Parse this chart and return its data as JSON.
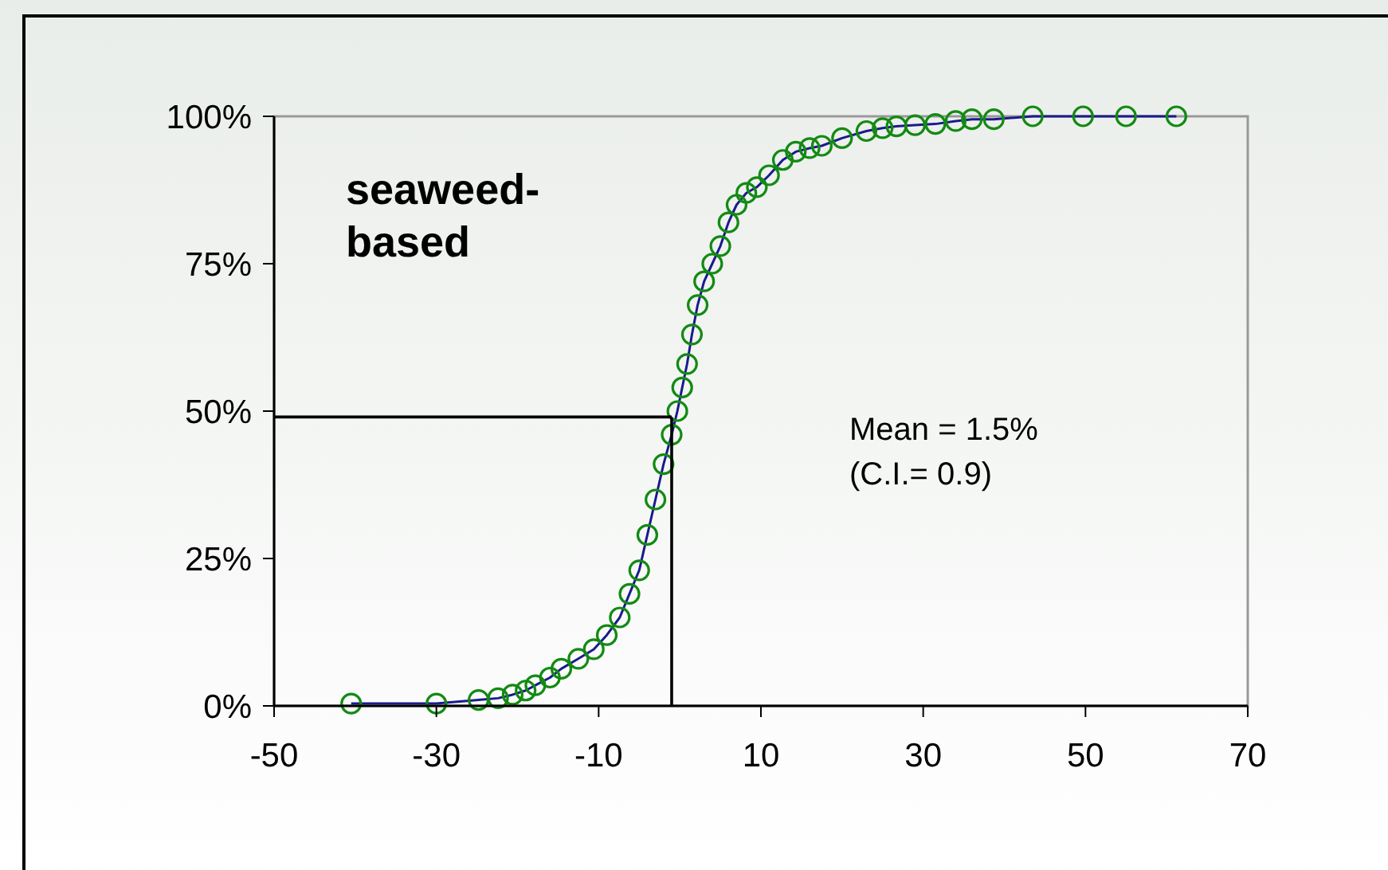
{
  "chart_data": {
    "type": "scatter",
    "marker": "circle",
    "grid": false,
    "xlim": [
      -50,
      70
    ],
    "xticks": [
      -50,
      -30,
      -10,
      10,
      30,
      50,
      70
    ],
    "ylim": [
      0,
      100
    ],
    "yticks": [
      {
        "value": 0,
        "label": "0%"
      },
      {
        "value": 25,
        "label": "25%"
      },
      {
        "value": 50,
        "label": "50%"
      },
      {
        "value": 75,
        "label": "75%"
      },
      {
        "value": 100,
        "label": "100%"
      }
    ],
    "series": [
      {
        "type": "line",
        "marker": "none",
        "color": "#1a1a8c",
        "x": [
          -40.5,
          -30,
          -24.8,
          -22.4,
          -20.6,
          -19,
          -17.8,
          -16,
          -14.6,
          -12.5,
          -10.6,
          -9,
          -7.4,
          -6.2,
          -5,
          -4,
          -3,
          -2,
          -1,
          -0.3,
          0.3,
          0.9,
          1.5,
          2.2,
          3,
          4,
          5,
          6,
          7,
          8.2,
          9.5,
          11,
          12.7,
          14.3,
          16,
          17.5,
          20,
          23,
          25,
          26.7,
          29,
          31.5,
          34,
          36,
          38.7,
          43.5,
          49.7,
          55,
          61.2
        ],
        "values": [
          0.4,
          0.4,
          1,
          1.3,
          1.9,
          2.6,
          3.5,
          4.8,
          6.3,
          8,
          9.6,
          12,
          15,
          19,
          23,
          29,
          35,
          41,
          46,
          50,
          54,
          58,
          63,
          68,
          72,
          75,
          78,
          82,
          85,
          87,
          88,
          90,
          92.6,
          94,
          94.6,
          95,
          96.3,
          97.5,
          98,
          98.3,
          98.5,
          98.7,
          99.2,
          99.5,
          99.5,
          100,
          100,
          100,
          100
        ]
      },
      {
        "color": "#138a13",
        "x": [
          -40.5,
          -30,
          -24.8,
          -22.4,
          -20.6,
          -19,
          -17.8,
          -16,
          -14.6,
          -12.5,
          -10.6,
          -9,
          -7.4,
          -6.2,
          -5,
          -4,
          -3,
          -2,
          -1,
          -0.3,
          0.3,
          0.9,
          1.5,
          2.2,
          3,
          4,
          5,
          6,
          7,
          8.2,
          9.5,
          11,
          12.7,
          14.3,
          16,
          17.5,
          20,
          23,
          25,
          26.7,
          29,
          31.5,
          34,
          36,
          38.7,
          43.5,
          49.7,
          55,
          61.2
        ],
        "values": [
          0.4,
          0.4,
          1,
          1.3,
          1.9,
          2.6,
          3.5,
          4.8,
          6.3,
          8,
          9.6,
          12,
          15,
          19,
          23,
          29,
          35,
          41,
          46,
          50,
          54,
          58,
          63,
          68,
          72,
          75,
          78,
          82,
          85,
          87,
          88,
          90,
          92.6,
          94,
          94.6,
          95,
          96.3,
          97.5,
          98,
          98.3,
          98.5,
          98.7,
          99.2,
          99.5,
          99.5,
          100,
          100,
          100,
          100
        ]
      }
    ],
    "ref_lines": [
      {
        "axis": "x",
        "value": -1,
        "color": "#000000"
      },
      {
        "axis": "y",
        "value": 49,
        "color": "#000000"
      }
    ],
    "annotations": [
      "seaweed-\nbased",
      "Mean = 1.5%\n(C.I.= 0.9)"
    ]
  }
}
